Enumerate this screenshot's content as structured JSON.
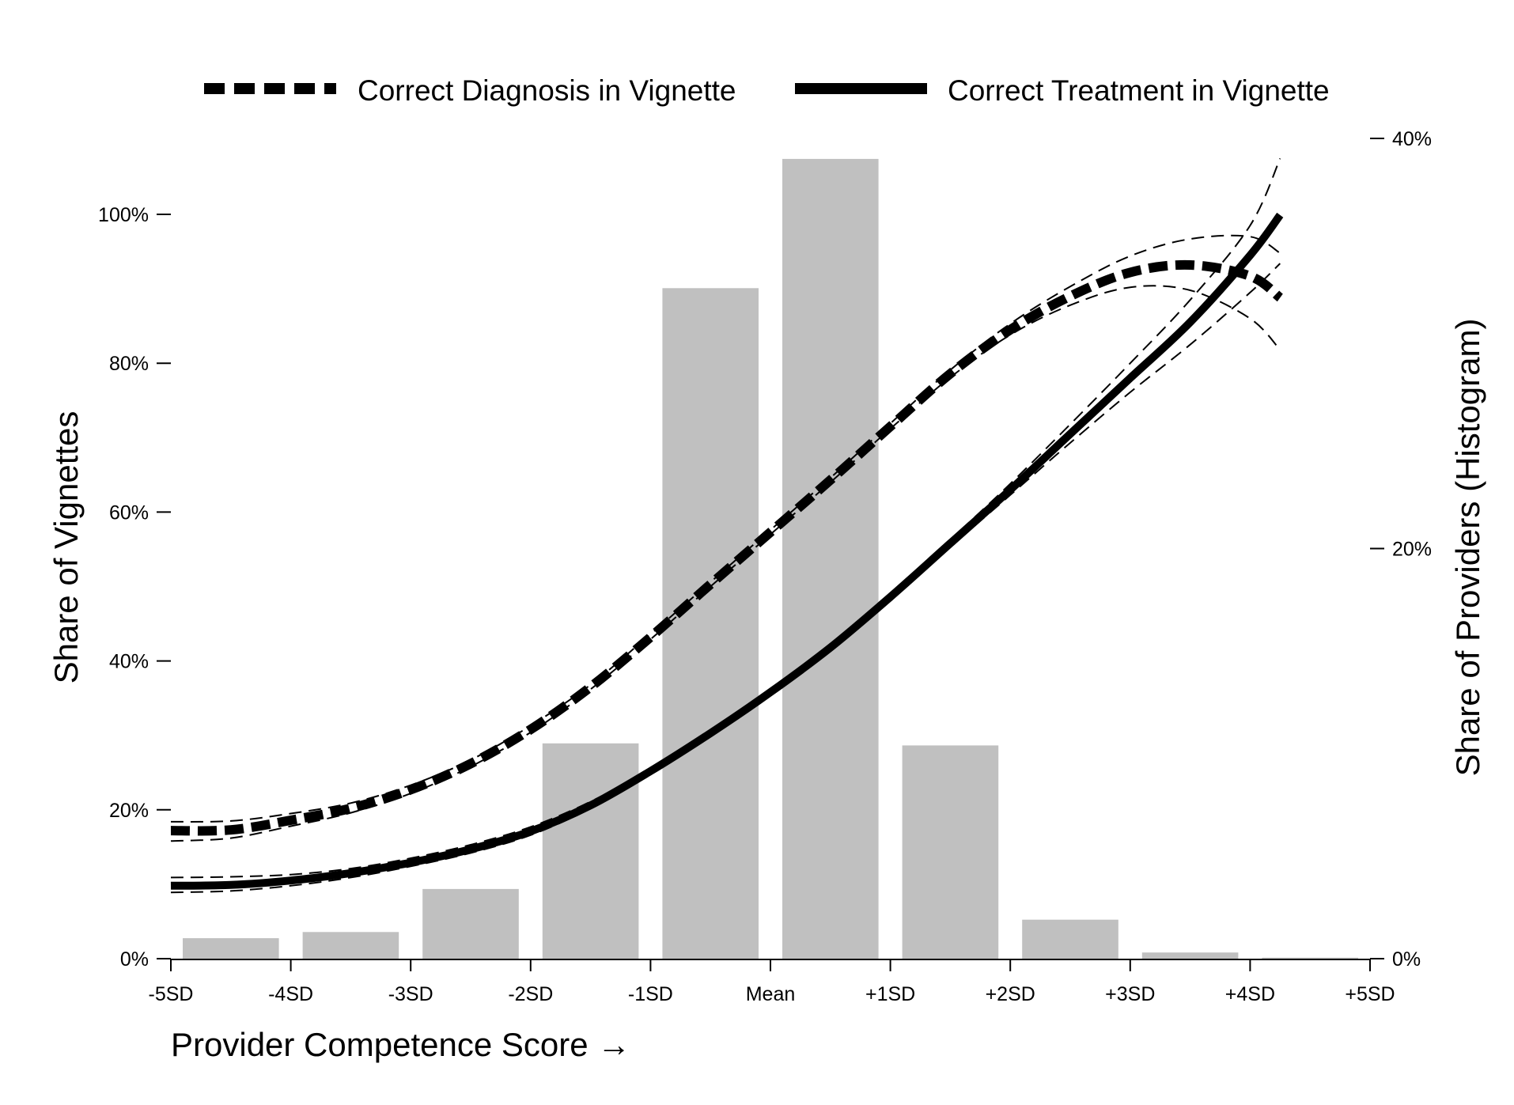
{
  "chart_data": {
    "type": "bar+line",
    "x_axis": {
      "label": "Provider Competence Score →",
      "range_sd": [
        -5,
        5
      ],
      "ticks": [
        {
          "value": -5,
          "label": "-5SD"
        },
        {
          "value": -4,
          "label": "-4SD"
        },
        {
          "value": -3,
          "label": "-3SD"
        },
        {
          "value": -2,
          "label": "-2SD"
        },
        {
          "value": -1,
          "label": "-1SD"
        },
        {
          "value": 0,
          "label": "Mean"
        },
        {
          "value": 1,
          "label": "+1SD"
        },
        {
          "value": 2,
          "label": "+2SD"
        },
        {
          "value": 3,
          "label": "+3SD"
        },
        {
          "value": 4,
          "label": "+4SD"
        },
        {
          "value": 5,
          "label": "+5SD"
        }
      ]
    },
    "y_left": {
      "label": "Share of Vignettes",
      "range": [
        0,
        100
      ],
      "ticks": [
        {
          "value": 0,
          "label": "0%"
        },
        {
          "value": 20,
          "label": "20%"
        },
        {
          "value": 40,
          "label": "40%"
        },
        {
          "value": 60,
          "label": "60%"
        },
        {
          "value": 80,
          "label": "80%"
        },
        {
          "value": 100,
          "label": "100%"
        }
      ]
    },
    "y_right": {
      "label": "Share of Providers (Histogram)",
      "range": [
        0,
        40
      ],
      "ticks": [
        {
          "value": 0,
          "label": "0%"
        },
        {
          "value": 20,
          "label": "20%"
        },
        {
          "value": 40,
          "label": "40%"
        }
      ]
    },
    "histogram": {
      "color": "#c0c0c0",
      "bins": [
        {
          "from": -5,
          "to": -4,
          "value": 1.0
        },
        {
          "from": -4,
          "to": -3,
          "value": 1.3
        },
        {
          "from": -3,
          "to": -2,
          "value": 3.4
        },
        {
          "from": -2,
          "to": -1,
          "value": 10.5
        },
        {
          "from": -1,
          "to": 0,
          "value": 32.7
        },
        {
          "from": 0,
          "to": 1,
          "value": 39.0
        },
        {
          "from": 1,
          "to": 2,
          "value": 10.4
        },
        {
          "from": 2,
          "to": 3,
          "value": 1.9
        },
        {
          "from": 3,
          "to": 4,
          "value": 0.3
        },
        {
          "from": 4,
          "to": 5,
          "value": 0.05
        }
      ]
    },
    "series": [
      {
        "name": "Correct Diagnosis in Vignette",
        "style": "dashed-thick",
        "color": "#000000",
        "x": [
          -5,
          -4.5,
          -4,
          -3.5,
          -3,
          -2.5,
          -2,
          -1.5,
          -1,
          -0.5,
          0,
          0.5,
          1,
          1.5,
          2,
          2.5,
          3,
          3.5,
          4,
          4.25
        ],
        "y": [
          17.2,
          17.3,
          18.6,
          20.2,
          22.7,
          26.2,
          30.8,
          36.5,
          43.2,
          50.3,
          57.3,
          64.3,
          71.5,
          78.6,
          84.5,
          89.0,
          92.2,
          93.2,
          91.7,
          88.8
        ],
        "ci_lower": [
          15.8,
          16.2,
          17.8,
          19.6,
          22.2,
          25.8,
          30.4,
          36.2,
          42.9,
          50.0,
          57.0,
          64.0,
          71.2,
          78.1,
          83.8,
          87.8,
          90.2,
          89.8,
          86.0,
          81.8
        ],
        "ci_upper": [
          18.4,
          18.5,
          19.5,
          20.9,
          23.3,
          26.7,
          31.3,
          36.8,
          43.6,
          50.6,
          57.6,
          64.6,
          71.9,
          79.1,
          85.3,
          90.3,
          94.4,
          96.7,
          97.0,
          94.8
        ]
      },
      {
        "name": "Correct Treatment in Vignette",
        "style": "solid-thick",
        "color": "#000000",
        "x": [
          -5,
          -4.5,
          -4,
          -3.5,
          -3,
          -2.5,
          -2,
          -1.5,
          -1,
          -0.5,
          0,
          0.5,
          1,
          1.5,
          2,
          2.5,
          3,
          3.5,
          4,
          4.25
        ],
        "y": [
          9.8,
          9.9,
          10.5,
          11.5,
          12.9,
          14.7,
          17.1,
          20.6,
          25.2,
          30.3,
          35.8,
          41.8,
          48.6,
          55.8,
          63.0,
          70.5,
          78.0,
          85.5,
          94.5,
          99.9
        ],
        "ci_lower": [
          8.9,
          9.1,
          9.8,
          10.9,
          12.4,
          14.2,
          16.6,
          20.2,
          24.8,
          29.9,
          35.4,
          41.4,
          48.2,
          55.3,
          62.3,
          69.3,
          76.1,
          82.5,
          89.5,
          93.4
        ],
        "ci_upper": [
          10.9,
          11.0,
          11.3,
          12.1,
          13.5,
          15.3,
          17.7,
          21.1,
          25.6,
          30.7,
          36.2,
          42.2,
          49.0,
          56.3,
          63.8,
          71.8,
          80.0,
          88.5,
          98.5,
          107.5
        ]
      }
    ],
    "legend": {
      "placement": "top",
      "entries": [
        {
          "label": "Correct Diagnosis in Vignette",
          "style": "dashed-thick"
        },
        {
          "label": "Correct Treatment in Vignette",
          "style": "solid-thick"
        }
      ]
    },
    "grid": false
  }
}
